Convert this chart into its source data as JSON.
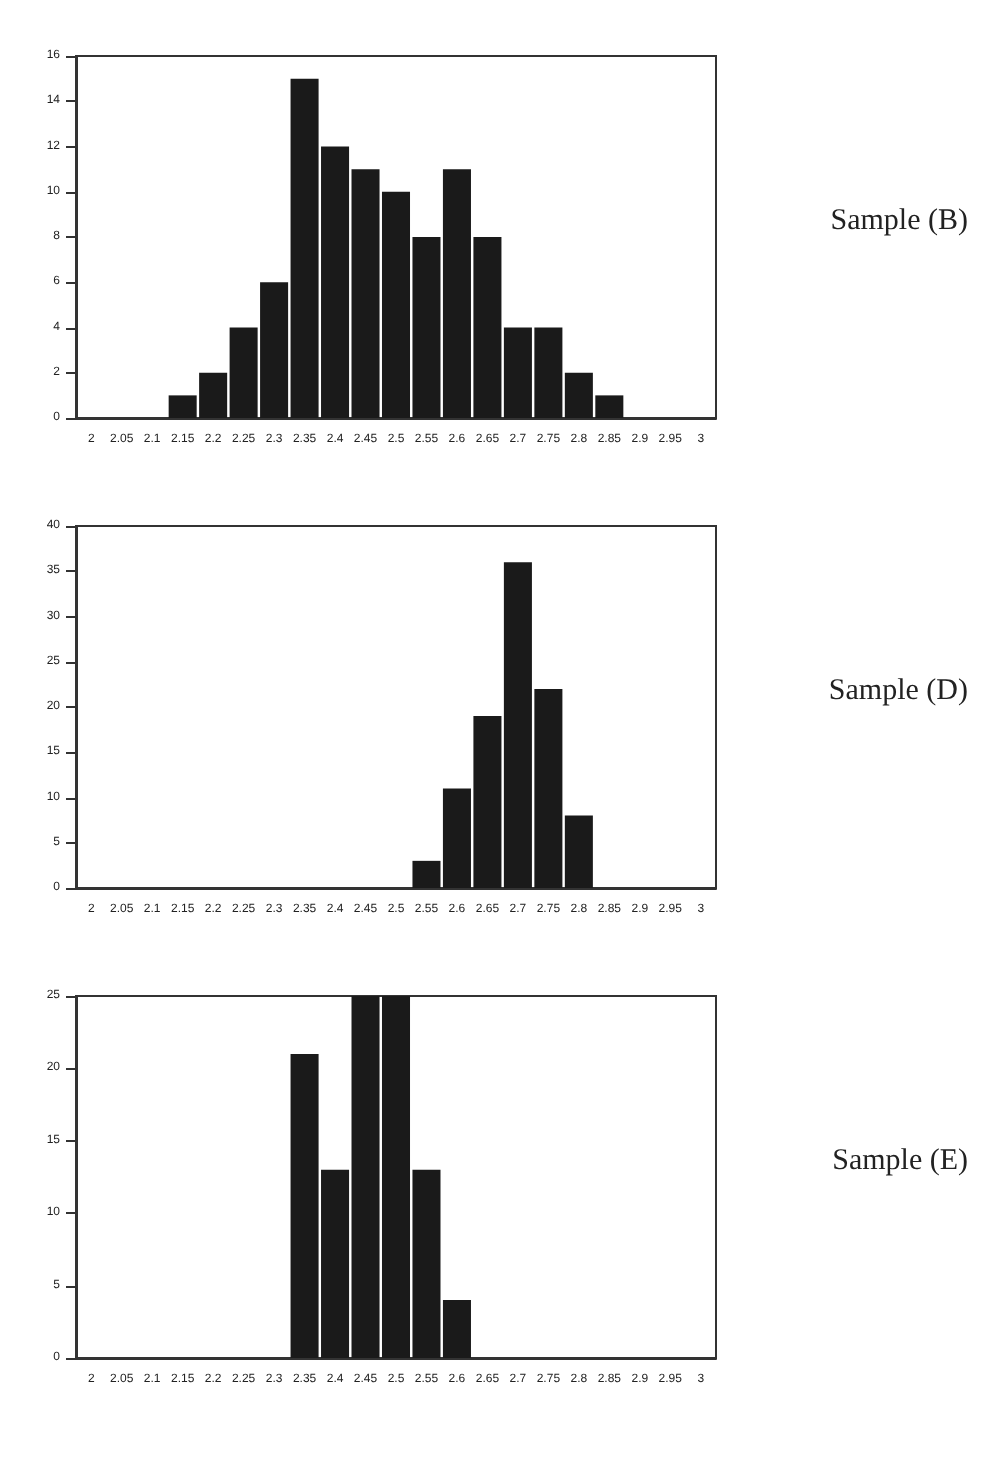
{
  "chart_data": [
    {
      "type": "bar",
      "categories": [
        "2",
        "2.05",
        "2.1",
        "2.15",
        "2.2",
        "2.25",
        "2.3",
        "2.35",
        "2.4",
        "2.45",
        "2.5",
        "2.55",
        "2.6",
        "2.65",
        "2.7",
        "2.75",
        "2.8",
        "2.85",
        "2.9",
        "2.95",
        "3"
      ],
      "values": [
        0,
        0,
        0,
        1,
        2,
        4,
        6,
        15,
        12,
        11,
        10,
        8,
        11,
        8,
        4,
        4,
        2,
        1,
        0,
        0,
        0
      ],
      "color": "#1a1a1a",
      "ylim": [
        0,
        16
      ],
      "yticks": [
        0,
        2,
        4,
        6,
        8,
        10,
        12,
        14,
        16
      ],
      "grid": false,
      "annotations": [
        "Sample (B)"
      ]
    },
    {
      "type": "bar",
      "categories": [
        "2",
        "2.05",
        "2.1",
        "2.15",
        "2.2",
        "2.25",
        "2.3",
        "2.35",
        "2.4",
        "2.45",
        "2.5",
        "2.55",
        "2.6",
        "2.65",
        "2.7",
        "2.75",
        "2.8",
        "2.85",
        "2.9",
        "2.95",
        "3"
      ],
      "values": [
        0,
        0,
        0,
        0,
        0,
        0,
        0,
        0,
        0,
        0,
        0,
        3,
        11,
        19,
        36,
        22,
        8,
        0,
        0,
        0,
        0
      ],
      "color": "#1a1a1a",
      "ylim": [
        0,
        40
      ],
      "yticks": [
        0,
        5,
        10,
        15,
        20,
        25,
        30,
        35,
        40
      ],
      "grid": false,
      "annotations": [
        "Sample (D)"
      ]
    },
    {
      "type": "bar",
      "categories": [
        "2",
        "2.05",
        "2.1",
        "2.15",
        "2.2",
        "2.25",
        "2.3",
        "2.35",
        "2.4",
        "2.45",
        "2.5",
        "2.55",
        "2.6",
        "2.65",
        "2.7",
        "2.75",
        "2.8",
        "2.85",
        "2.9",
        "2.95",
        "3"
      ],
      "values": [
        0,
        0,
        0,
        0,
        0,
        0,
        0,
        21,
        13,
        25,
        25,
        13,
        4,
        0,
        0,
        0,
        0,
        0,
        0,
        0,
        0
      ],
      "color": "#1a1a1a",
      "ylim": [
        0,
        25
      ],
      "yticks": [
        0,
        5,
        10,
        15,
        20,
        25
      ],
      "grid": false,
      "annotations": [
        "Sample (E)"
      ]
    }
  ]
}
